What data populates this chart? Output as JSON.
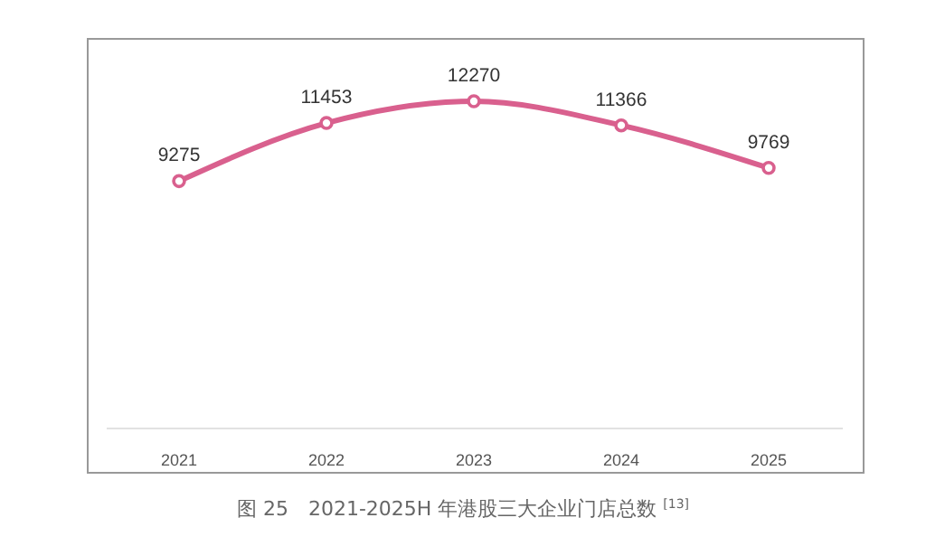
{
  "chart_data": {
    "type": "line",
    "title": "图 25　2021-2025H 年港股三大企业门店总数 $^{[13]}$",
    "categories": [
      "2021",
      "2022",
      "2023",
      "2024",
      "2025"
    ],
    "series": [
      {
        "color": "#d9608e",
        "values": [
          9275,
          11453,
          12270,
          11366,
          9769
        ]
      }
    ],
    "tick_labels": "x",
    "data_labels": true,
    "marker": "circle",
    "line_style": "solid"
  }
}
